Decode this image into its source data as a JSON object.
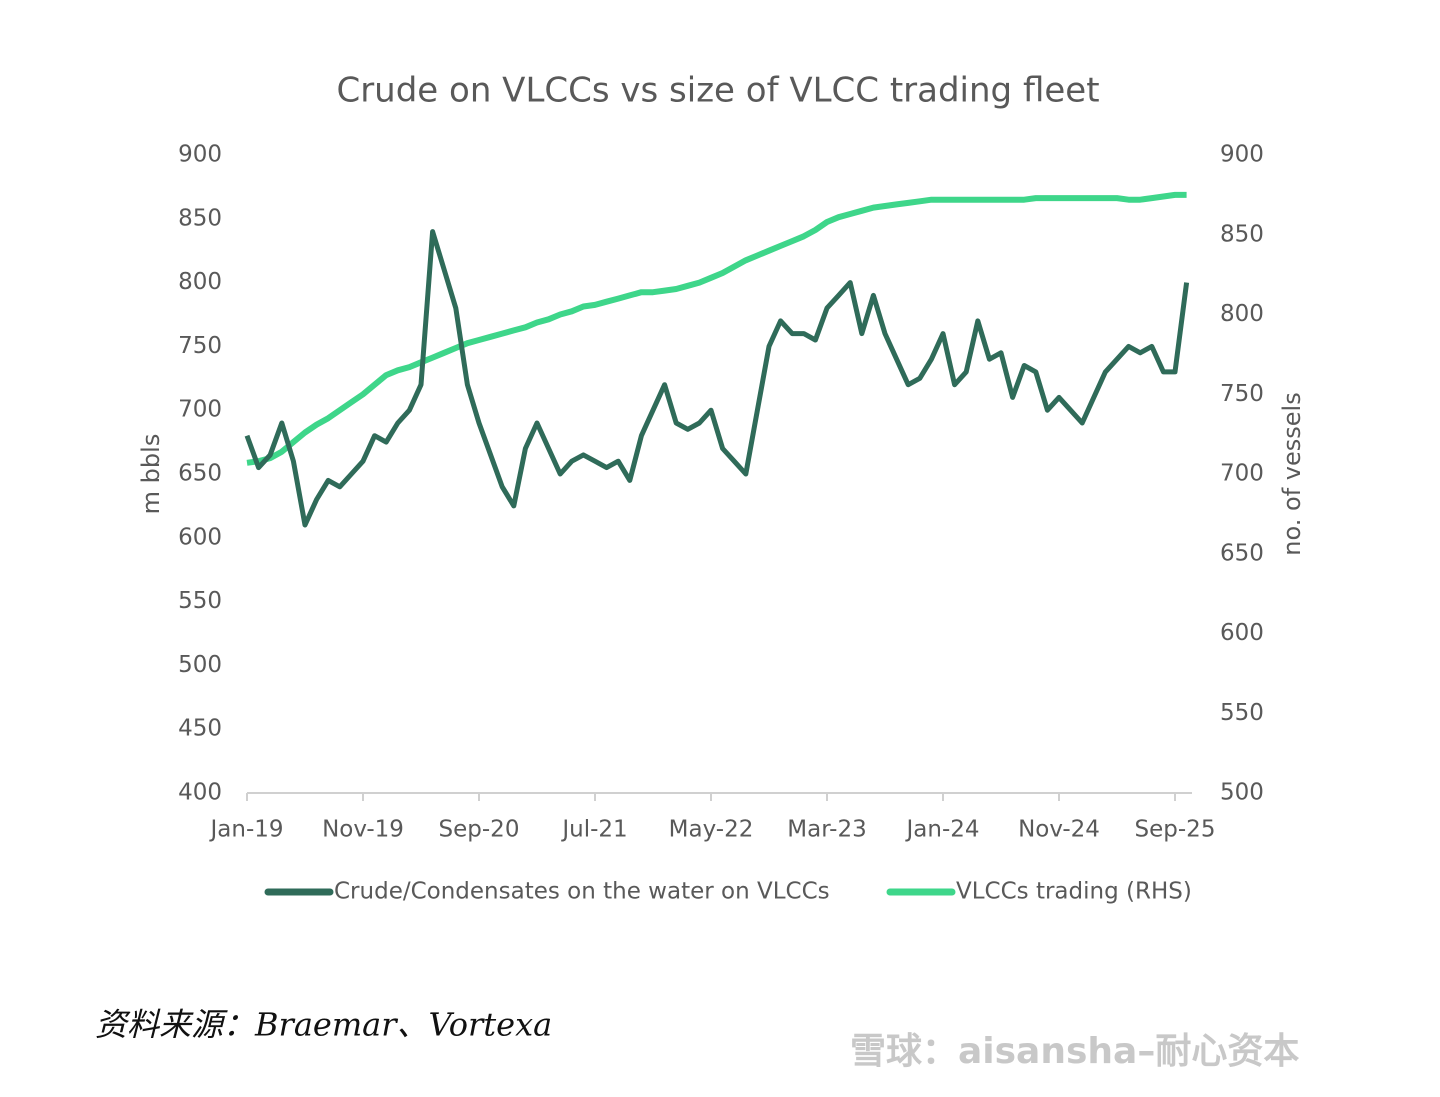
{
  "chart_data": {
    "type": "line",
    "title": "Crude on VLCCs vs size of VLCC trading fleet",
    "ylabel": "m bbls",
    "y2label": "no. of vessels",
    "categories": [
      "Jan-19",
      null,
      null,
      null,
      null,
      null,
      null,
      null,
      null,
      null,
      "Nov-19",
      null,
      null,
      null,
      null,
      null,
      null,
      null,
      null,
      null,
      "Sep-20",
      null,
      null,
      null,
      null,
      null,
      null,
      null,
      null,
      null,
      "Jul-21",
      null,
      null,
      null,
      null,
      null,
      null,
      null,
      null,
      null,
      "May-22",
      null,
      null,
      null,
      null,
      null,
      null,
      null,
      null,
      null,
      "Mar-23",
      null,
      null,
      null,
      null,
      null,
      null,
      null,
      null,
      null,
      "Jan-24",
      null,
      null,
      null,
      null,
      null,
      null,
      null,
      null,
      null,
      "Nov-24",
      null,
      null,
      null,
      null,
      null,
      null,
      null,
      null,
      null,
      "Sep-25",
      null
    ],
    "series": [
      {
        "name": "Crude/Condensates on the water on VLCCs",
        "color": "#2f6b59",
        "axis": "y",
        "values": [
          680,
          655,
          665,
          690,
          660,
          610,
          630,
          645,
          640,
          650,
          660,
          680,
          675,
          690,
          700,
          720,
          840,
          810,
          780,
          720,
          690,
          665,
          640,
          625,
          670,
          690,
          670,
          650,
          660,
          665,
          660,
          655,
          660,
          645,
          680,
          700,
          720,
          690,
          685,
          690,
          700,
          670,
          660,
          650,
          700,
          750,
          770,
          760,
          760,
          755,
          780,
          790,
          800,
          760,
          790,
          760,
          740,
          720,
          725,
          740,
          760,
          720,
          730,
          770,
          740,
          745,
          710,
          735,
          730,
          700,
          710,
          700,
          690,
          710,
          730,
          740,
          750,
          745,
          750,
          730,
          730,
          800
        ]
      },
      {
        "name": "VLCCs trading (RHS)",
        "color": "#3ed68a",
        "axis": "y2",
        "values": [
          707,
          708,
          710,
          714,
          720,
          726,
          731,
          735,
          740,
          745,
          750,
          756,
          762,
          765,
          767,
          770,
          773,
          776,
          779,
          782,
          784,
          786,
          788,
          790,
          792,
          795,
          797,
          800,
          802,
          805,
          806,
          808,
          810,
          812,
          814,
          814,
          815,
          816,
          818,
          820,
          823,
          826,
          830,
          834,
          837,
          840,
          843,
          846,
          849,
          853,
          858,
          861,
          863,
          865,
          867,
          868,
          869,
          870,
          871,
          872,
          872,
          872,
          872,
          872,
          872,
          872,
          872,
          872,
          873,
          873,
          873,
          873,
          873,
          873,
          873,
          873,
          872,
          872,
          873,
          874,
          875,
          875
        ]
      }
    ],
    "ylim": [
      400,
      900
    ],
    "yticks": [
      400,
      450,
      500,
      550,
      600,
      650,
      700,
      750,
      800,
      850,
      900
    ],
    "y2lim": [
      500,
      900
    ],
    "y2ticks": [
      500,
      550,
      600,
      650,
      700,
      750,
      800,
      850,
      900
    ],
    "grid": false,
    "legend": "bottom",
    "source": "资料来源：Braemar、Vortexa",
    "watermark": "雪球：aisansha–耐心资本"
  }
}
